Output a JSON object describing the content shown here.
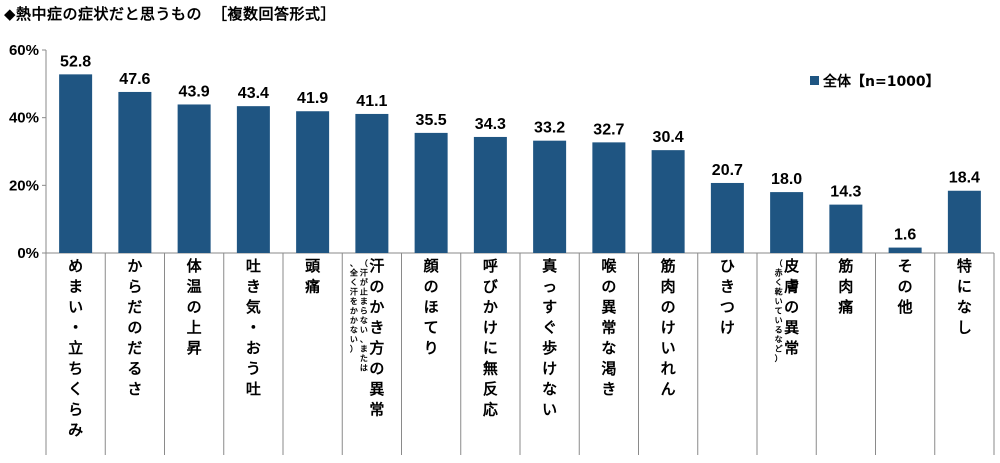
{
  "header": {
    "title": "◆熱中症の症状だと思うもの",
    "subtitle": "［複数回答形式］"
  },
  "chart_data": {
    "type": "bar",
    "title": "◆熱中症の症状だと思うもの",
    "subtitle": "［複数回答形式］",
    "ylim": [
      0,
      60
    ],
    "yticks": [
      "0%",
      "20%",
      "40%",
      "60%"
    ],
    "grid": false,
    "legend_position": "top-right",
    "bar_color": "#1f5582",
    "categories": [
      {
        "label": "めまい・立ちくらみ",
        "note": ""
      },
      {
        "label": "からだのだるさ",
        "note": ""
      },
      {
        "label": "体温の上昇",
        "note": ""
      },
      {
        "label": "吐き気・おう吐",
        "note": ""
      },
      {
        "label": "頭痛",
        "note": ""
      },
      {
        "label": "汗のかき方の異常",
        "note": "（汗が止まらない、または、全く汗をかかない）"
      },
      {
        "label": "顔のほてり",
        "note": ""
      },
      {
        "label": "呼びかけに無反応",
        "note": ""
      },
      {
        "label": "真っすぐ歩けない",
        "note": ""
      },
      {
        "label": "喉の異常な渇き",
        "note": ""
      },
      {
        "label": "筋肉のけいれん",
        "note": ""
      },
      {
        "label": "ひきつけ",
        "note": ""
      },
      {
        "label": "皮膚の異常",
        "note": "（赤く乾いているなど）"
      },
      {
        "label": "筋肉痛",
        "note": ""
      },
      {
        "label": "その他",
        "note": ""
      },
      {
        "label": "特になし",
        "note": ""
      }
    ],
    "series": [
      {
        "name": "全体【n=1000】",
        "values": [
          52.8,
          47.6,
          43.9,
          43.4,
          41.9,
          41.1,
          35.5,
          34.3,
          33.2,
          32.7,
          30.4,
          20.7,
          18.0,
          14.3,
          1.6,
          18.4
        ],
        "value_labels": [
          "52.8",
          "47.6",
          "43.9",
          "43.4",
          "41.9",
          "41.1",
          "35.5",
          "34.3",
          "33.2",
          "32.7",
          "30.4",
          "20.7",
          "18.0",
          "14.3",
          "1.6",
          "18.4"
        ]
      }
    ]
  }
}
